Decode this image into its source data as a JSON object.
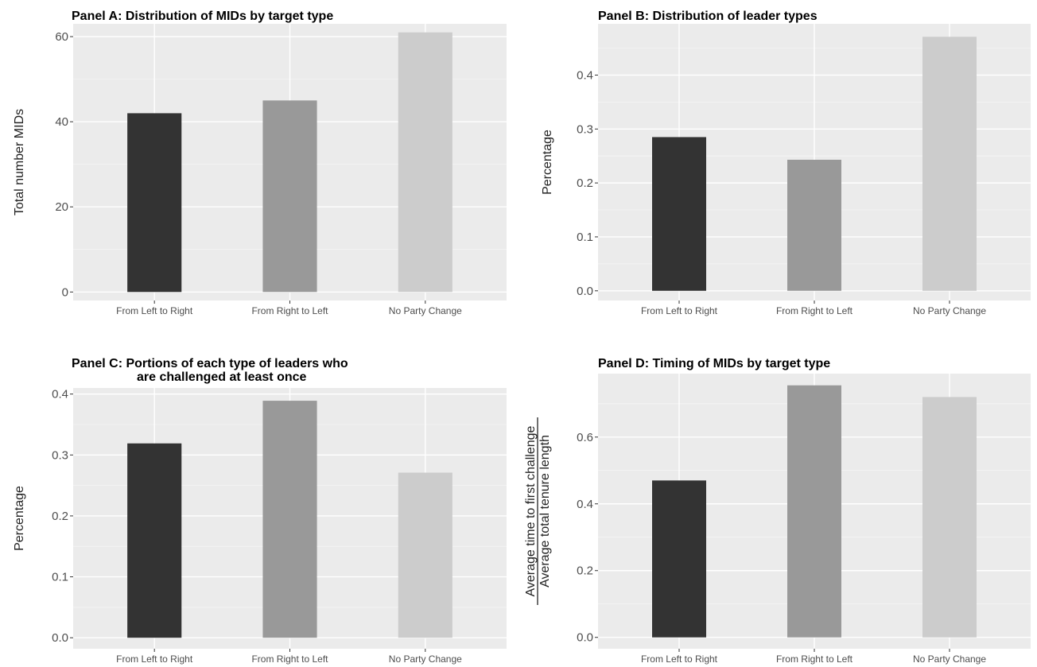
{
  "chart_data": [
    {
      "type": "bar",
      "title": [
        "Panel A: Distribution of MIDs by target type"
      ],
      "ylabel": [
        "Total number MIDs"
      ],
      "categories": [
        "From Left to Right",
        "From Right to Left",
        "No Party Change"
      ],
      "values": [
        42,
        45,
        61
      ],
      "colors": [
        "#333333",
        "#999999",
        "#cccccc"
      ],
      "ylim": [
        -2,
        63
      ],
      "yticks": [
        0,
        20,
        40,
        60
      ],
      "ytick_labels": [
        "0",
        "20",
        "40",
        "60"
      ],
      "grid": true
    },
    {
      "type": "bar",
      "title": [
        "Panel B: Distribution of leader types"
      ],
      "ylabel": [
        "Percentage"
      ],
      "categories": [
        "From Left to Right",
        "From Right to Left",
        "No Party Change"
      ],
      "values": [
        0.285,
        0.243,
        0.471
      ],
      "colors": [
        "#333333",
        "#999999",
        "#cccccc"
      ],
      "ylim": [
        -0.018,
        0.495
      ],
      "yticks": [
        0,
        0.1,
        0.2,
        0.3,
        0.4
      ],
      "ytick_labels": [
        "0.0",
        "0.1",
        "0.2",
        "0.3",
        "0.4"
      ],
      "grid": true
    },
    {
      "type": "bar",
      "title": [
        "Panel C: Portions of each type of leaders who",
        "are challenged at least once"
      ],
      "ylabel": [
        "Percentage"
      ],
      "categories": [
        "From Left to Right",
        "From Right to Left",
        "No Party Change"
      ],
      "values": [
        0.319,
        0.389,
        0.271
      ],
      "colors": [
        "#333333",
        "#999999",
        "#cccccc"
      ],
      "ylim": [
        -0.018,
        0.41
      ],
      "yticks": [
        0,
        0.1,
        0.2,
        0.3,
        0.4
      ],
      "ytick_labels": [
        "0.0",
        "0.1",
        "0.2",
        "0.3",
        "0.4"
      ],
      "grid": true
    },
    {
      "type": "bar",
      "title": [
        "Panel D: Timing of MIDs by target type"
      ],
      "ylabel": [
        "Average time to first challenge",
        "Average total tenure length"
      ],
      "ylabel_is_fraction": true,
      "categories": [
        "From Left to Right",
        "From Right to Left",
        "No Party Change"
      ],
      "values": [
        0.47,
        0.755,
        0.72
      ],
      "colors": [
        "#333333",
        "#999999",
        "#cccccc"
      ],
      "ylim": [
        -0.034,
        0.79
      ],
      "yticks": [
        0,
        0.2,
        0.4,
        0.6
      ],
      "ytick_labels": [
        "0.0",
        "0.2",
        "0.4",
        "0.6"
      ],
      "grid": true
    }
  ]
}
